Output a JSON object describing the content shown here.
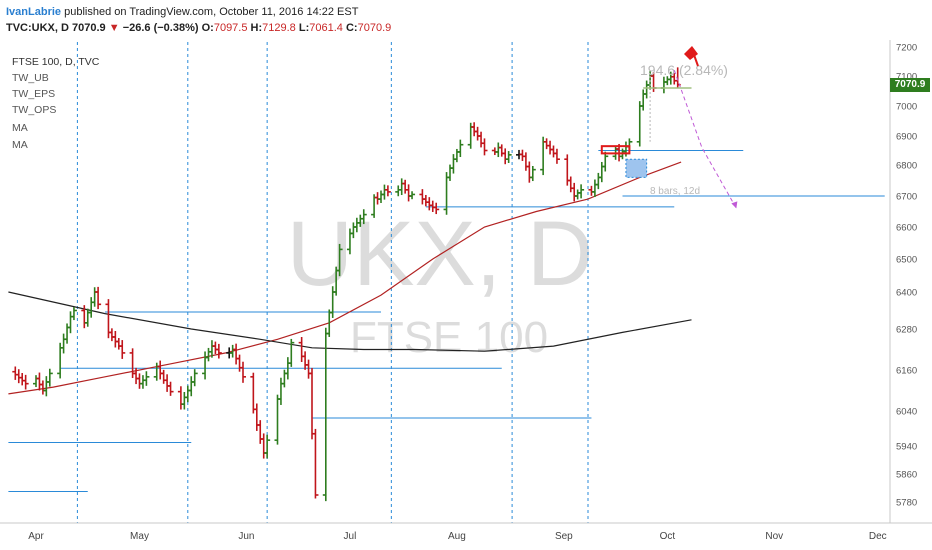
{
  "header": {
    "author": "IvanLabrie",
    "published": " published on TradingView.com, October 11, 2016 14:22 EST",
    "symbol": "TVC:UKX, D",
    "last": "7070.9",
    "change_arrow": "▼",
    "change": "−26.6 (−0.38%)",
    "o_label": "O:",
    "o": "7097.5",
    "h_label": "H:",
    "h": "7129.8",
    "l_label": "L:",
    "l": "7061.4",
    "c_label": "C:",
    "c": "7070.9"
  },
  "legend": {
    "title": "FTSE 100, D, TVC",
    "indicators": [
      "TW_UB",
      "TW_EPS",
      "TW_OPS",
      "MA",
      "MA"
    ]
  },
  "watermark": {
    "symbol": "UKX, D",
    "name": "FTSE 100"
  },
  "price_tag": "7070.9",
  "annotations": {
    "move": "194.6 (2.84%)",
    "span": "8 bars, 12d"
  },
  "colors": {
    "up": "#2e7d1f",
    "down": "#c0151b",
    "neutral": "#111111",
    "ma_fast": "#b22222",
    "ma_slow": "#222222",
    "level": "#2a8ad8",
    "projection": "#c05ad6"
  },
  "chart_data": {
    "type": "ohlc",
    "title": "FTSE 100, D, TVC",
    "x_axis_labels": [
      "Apr",
      "May",
      "Jun",
      "Jul",
      "Aug",
      "Sep",
      "Oct",
      "Nov",
      "Dec"
    ],
    "x_axis_positions_days": [
      0,
      30,
      61,
      91,
      122,
      153,
      183,
      214,
      244
    ],
    "x_range_days": [
      -8,
      247
    ],
    "y_axis_labels": [
      5780,
      5860,
      5940,
      6040,
      6160,
      6280,
      6400,
      6500,
      6600,
      6700,
      6800,
      6900,
      7000,
      7100,
      7200
    ],
    "ylim": [
      5720,
      7230
    ],
    "last_price": 7070.9,
    "close_path": [
      [
        -7,
        6155
      ],
      [
        -3,
        6120
      ],
      [
        0,
        6135
      ],
      [
        2,
        6100
      ],
      [
        4,
        6150
      ],
      [
        6,
        6200
      ],
      [
        8,
        6250
      ],
      [
        10,
        6320
      ],
      [
        12,
        6360
      ],
      [
        14,
        6300
      ],
      [
        17,
        6400
      ],
      [
        19,
        6320
      ],
      [
        21,
        6270
      ],
      [
        24,
        6230
      ],
      [
        26,
        6190
      ],
      [
        28,
        6150
      ],
      [
        30,
        6120
      ],
      [
        33,
        6150
      ],
      [
        35,
        6170
      ],
      [
        37,
        6130
      ],
      [
        40,
        6080
      ],
      [
        42,
        6060
      ],
      [
        44,
        6100
      ],
      [
        46,
        6150
      ],
      [
        48,
        6180
      ],
      [
        51,
        6230
      ],
      [
        53,
        6210
      ],
      [
        55,
        6200
      ],
      [
        57,
        6220
      ],
      [
        60,
        6140
      ],
      [
        62,
        6090
      ],
      [
        64,
        6000
      ],
      [
        66,
        5920
      ],
      [
        69,
        6030
      ],
      [
        71,
        6120
      ],
      [
        73,
        6180
      ],
      [
        75,
        6300
      ],
      [
        77,
        6200
      ],
      [
        79,
        6150
      ],
      [
        81,
        5800
      ],
      [
        83,
        6200
      ],
      [
        86,
        6400
      ],
      [
        88,
        6530
      ],
      [
        90,
        6560
      ],
      [
        92,
        6600
      ],
      [
        95,
        6640
      ],
      [
        97,
        6700
      ],
      [
        99,
        6690
      ],
      [
        101,
        6720
      ],
      [
        104,
        6700
      ],
      [
        106,
        6740
      ],
      [
        108,
        6700
      ],
      [
        110,
        6710
      ],
      [
        112,
        6690
      ],
      [
        114,
        6670
      ],
      [
        117,
        6650
      ],
      [
        119,
        6760
      ],
      [
        121,
        6820
      ],
      [
        123,
        6870
      ],
      [
        126,
        6930
      ],
      [
        128,
        6900
      ],
      [
        130,
        6850
      ],
      [
        132,
        6830
      ],
      [
        134,
        6860
      ],
      [
        136,
        6820
      ],
      [
        138,
        6850
      ],
      [
        141,
        6830
      ],
      [
        143,
        6760
      ],
      [
        145,
        6810
      ],
      [
        147,
        6880
      ],
      [
        150,
        6840
      ],
      [
        152,
        6800
      ],
      [
        154,
        6750
      ],
      [
        156,
        6700
      ],
      [
        158,
        6720
      ],
      [
        160,
        6690
      ],
      [
        163,
        6760
      ],
      [
        165,
        6830
      ],
      [
        167,
        6880
      ],
      [
        169,
        6830
      ],
      [
        172,
        6880
      ],
      [
        174,
        6960
      ],
      [
        176,
        7040
      ],
      [
        178,
        7100
      ],
      [
        180,
        7020
      ],
      [
        182,
        7080
      ],
      [
        184,
        7097.5
      ],
      [
        186,
        7070.9
      ]
    ],
    "series": [
      {
        "name": "MA",
        "type": "line",
        "points": [
          [
            -8,
            6090
          ],
          [
            5,
            6110
          ],
          [
            20,
            6140
          ],
          [
            40,
            6180
          ],
          [
            55,
            6210
          ],
          [
            70,
            6250
          ],
          [
            85,
            6300
          ],
          [
            100,
            6390
          ],
          [
            115,
            6500
          ],
          [
            130,
            6600
          ],
          [
            145,
            6650
          ],
          [
            160,
            6690
          ],
          [
            175,
            6760
          ],
          [
            187,
            6810
          ]
        ]
      },
      {
        "name": "MA",
        "type": "line",
        "points": [
          [
            -8,
            6400
          ],
          [
            20,
            6330
          ],
          [
            45,
            6280
          ],
          [
            65,
            6250
          ],
          [
            80,
            6225
          ],
          [
            95,
            6220
          ],
          [
            110,
            6220
          ],
          [
            130,
            6215
          ],
          [
            150,
            6230
          ],
          [
            170,
            6270
          ],
          [
            190,
            6310
          ]
        ]
      }
    ],
    "horizontal_levels": [
      {
        "price": 6850,
        "from_day": 163,
        "to_day": 205
      },
      {
        "price": 6700,
        "from_day": 170,
        "to_day": 246
      },
      {
        "price": 6665,
        "from_day": 113,
        "to_day": 185
      },
      {
        "price": 6335,
        "from_day": 20,
        "to_day": 100
      },
      {
        "price": 6165,
        "from_day": 7,
        "to_day": 135
      },
      {
        "price": 6020,
        "from_day": 80,
        "to_day": 161
      },
      {
        "price": 5950,
        "from_day": -8,
        "to_day": 45
      },
      {
        "price": 5810,
        "from_day": -8,
        "to_day": 15
      }
    ],
    "vertical_markers_days": [
      12,
      44,
      67,
      103,
      138,
      160
    ],
    "projection": {
      "points": [
        [
          185,
          7120
        ],
        [
          193,
          6860
        ],
        [
          203,
          6660
        ]
      ]
    }
  }
}
